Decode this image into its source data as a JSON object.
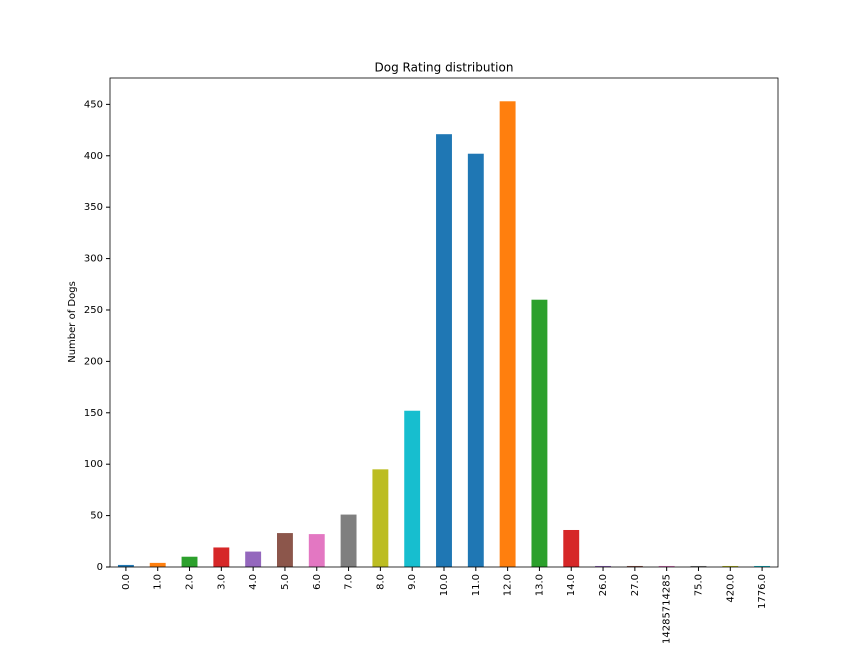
{
  "chart_data": {
    "type": "bar",
    "title": "Dog Rating distribution",
    "y_label": "Number of Dogs",
    "categories": [
      "0.0",
      "1.0",
      "2.0",
      "3.0",
      "4.0",
      "5.0",
      "6.0",
      "7.0",
      "8.0",
      "9.0",
      "10.0",
      "11.0",
      "12.0",
      "13.0",
      "14.0",
      "26.0",
      "27.0",
      "14285714285",
      "75.0",
      "420.0",
      "1776.0"
    ],
    "values": [
      2,
      4,
      10,
      19,
      15,
      33,
      32,
      51,
      95,
      152,
      421,
      402,
      453,
      260,
      36,
      1,
      1,
      1,
      1,
      1,
      1
    ],
    "colors": [
      "#1f77b4",
      "#ff7f0e",
      "#2ca02c",
      "#d62728",
      "#9467bd",
      "#8c564b",
      "#e377c2",
      "#7f7f7f",
      "#bcbd22",
      "#17becf",
      "#1f77b4",
      "#1f77b4",
      "#ff7f0e",
      "#2ca02c",
      "#d62728",
      "#9467bd",
      "#8c564b",
      "#e377c2",
      "#7f7f7f",
      "#bcbd22",
      "#17becf"
    ],
    "ylim": [
      0,
      475.65
    ],
    "yticks": [
      0,
      50,
      100,
      150,
      200,
      250,
      300,
      350,
      400,
      450
    ],
    "grid": false
  }
}
